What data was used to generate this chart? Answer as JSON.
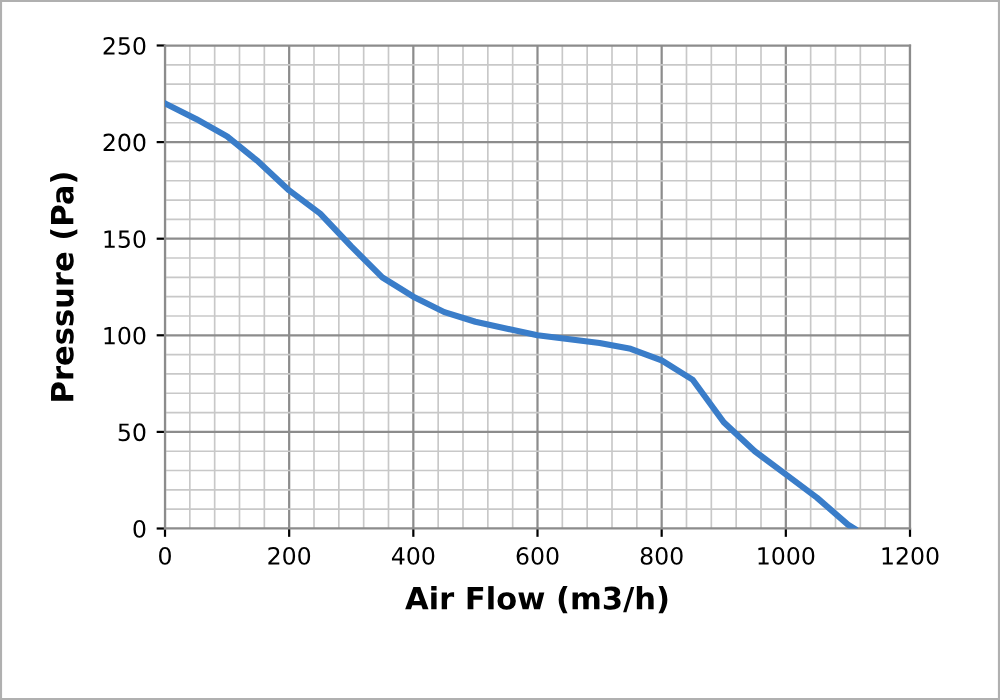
{
  "chart_data": {
    "type": "line",
    "xlabel": "Air Flow (m3/h)",
    "ylabel": "Pressure (Pa)",
    "x": [
      0,
      50,
      100,
      150,
      200,
      250,
      300,
      350,
      400,
      450,
      500,
      600,
      700,
      750,
      800,
      850,
      900,
      950,
      1000,
      1050,
      1100,
      1110
    ],
    "series": [
      {
        "color": "#3a7dc9",
        "values": [
          220,
          212,
          203,
          190,
          175,
          163,
          146,
          130,
          120,
          112,
          107,
          100,
          96,
          93,
          87,
          77,
          55,
          40,
          28,
          16,
          2,
          0
        ]
      }
    ],
    "xlim": [
      0,
      1200
    ],
    "ylim": [
      0,
      250
    ],
    "xticks": [
      0,
      {
        "value": 40,
        "label": null
      },
      {
        "value": 80,
        "label": null
      },
      {
        "value": 120,
        "label": null
      },
      {
        "value": 160,
        "label": null
      },
      200,
      {
        "value": 240,
        "label": null
      },
      {
        "value": 280,
        "label": null
      },
      {
        "value": 320,
        "label": null
      },
      {
        "value": 360,
        "label": null
      },
      400,
      {
        "value": 440,
        "label": null
      },
      {
        "value": 480,
        "label": null
      },
      {
        "value": 520,
        "label": null
      },
      {
        "value": 560,
        "label": null
      },
      600,
      {
        "value": 640,
        "label": null
      },
      {
        "value": 680,
        "label": null
      },
      {
        "value": 720,
        "label": null
      },
      {
        "value": 760,
        "label": null
      },
      800,
      {
        "value": 840,
        "label": null
      },
      {
        "value": 880,
        "label": null
      },
      {
        "value": 920,
        "label": null
      },
      {
        "value": 960,
        "label": null
      },
      1000,
      {
        "value": 1040,
        "label": null
      },
      {
        "value": 1080,
        "label": null
      },
      {
        "value": 1120,
        "label": null
      },
      {
        "value": 1160,
        "label": null
      },
      1200
    ],
    "yticks": [
      0,
      {
        "value": 10,
        "label": null
      },
      {
        "value": 20,
        "label": null
      },
      {
        "value": 30,
        "label": null
      },
      {
        "value": 40,
        "label": null
      },
      50,
      {
        "value": 60,
        "label": null
      },
      {
        "value": 70,
        "label": null
      },
      {
        "value": 80,
        "label": null
      },
      {
        "value": 90,
        "label": null
      },
      100,
      {
        "value": 110,
        "label": null
      },
      {
        "value": 120,
        "label": null
      },
      {
        "value": 130,
        "label": null
      },
      {
        "value": 140,
        "label": null
      },
      150,
      {
        "value": 160,
        "label": null
      },
      {
        "value": 170,
        "label": null
      },
      {
        "value": 180,
        "label": null
      },
      {
        "value": 190,
        "label": null
      },
      200,
      {
        "value": 210,
        "label": null
      },
      {
        "value": 220,
        "label": null
      },
      {
        "value": 230,
        "label": null
      },
      {
        "value": 240,
        "label": null
      },
      250
    ],
    "grid": true,
    "line_style": "solid",
    "marker": "none"
  }
}
